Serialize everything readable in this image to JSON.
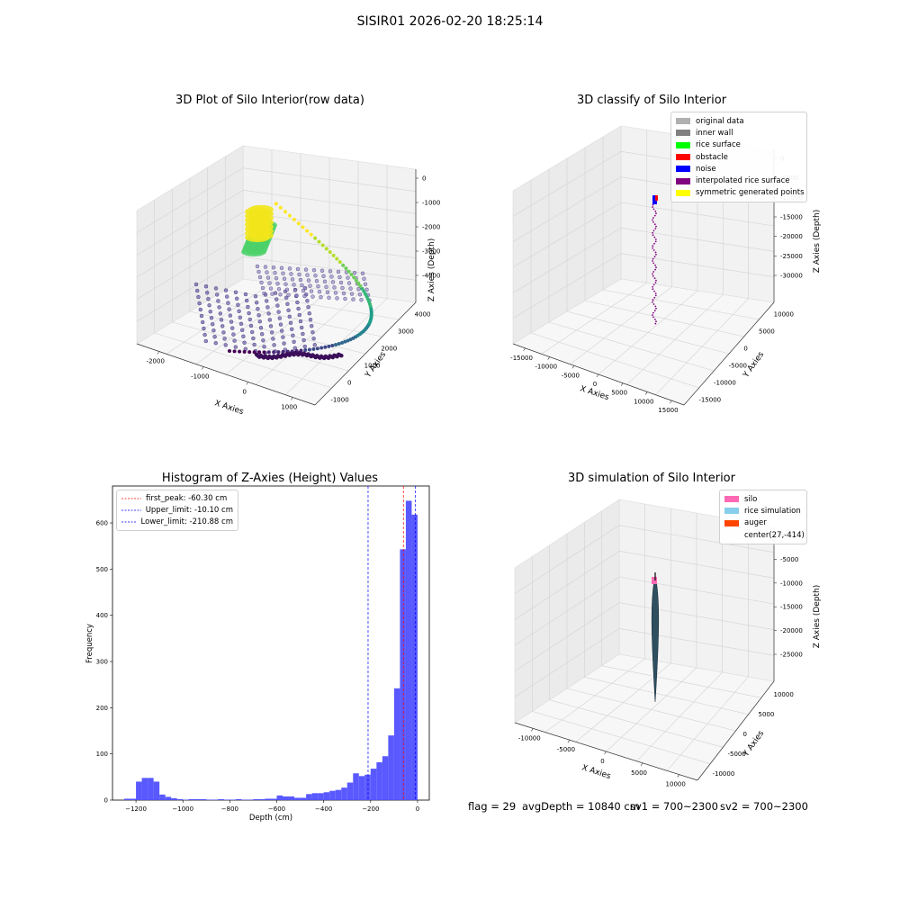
{
  "figure": {
    "title": "SISIR01 2026-02-20 18:25:14"
  },
  "chart_data": [
    {
      "type": "scatter",
      "dimensions": 3,
      "title": "3D Plot of Silo Interior(row data)",
      "xlabel": "X Axies",
      "ylabel": "Y Axies",
      "zlabel": "Z Axies (Depth)",
      "xticks": [
        "-2000",
        "-1000",
        "0",
        "1000"
      ],
      "yticks": [
        "-1000",
        "0",
        "1000",
        "2000",
        "3000",
        "4000"
      ],
      "zticks": [
        "0",
        "-1000",
        "-2000",
        "-3000",
        "-4000"
      ],
      "colormap": "viridis",
      "grid": true
    },
    {
      "type": "scatter",
      "dimensions": 3,
      "title": "3D classify of Silo Interior",
      "xlabel": "X Axies",
      "ylabel": "Y Axies",
      "zlabel": "Z Axies (Depth)",
      "xticks": [
        "-15000",
        "-10000",
        "-5000",
        "0",
        "5000",
        "10000",
        "15000"
      ],
      "yticks": [
        "-15000",
        "-10000",
        "-5000",
        "0",
        "5000",
        "10000"
      ],
      "zticks": [
        "0",
        "-5000",
        "-10000",
        "-15000",
        "-20000",
        "-25000",
        "-30000"
      ],
      "legend_position": "top-right",
      "legend": [
        {
          "label": "original data",
          "color": "#b0b0b0"
        },
        {
          "label": "inner wall",
          "color": "#808080"
        },
        {
          "label": "rice surface",
          "color": "#00ff00"
        },
        {
          "label": "obstacle",
          "color": "#ff0000"
        },
        {
          "label": "noise",
          "color": "#0000ff"
        },
        {
          "label": "interpolated rice surface",
          "color": "#800080"
        },
        {
          "label": "symmetric generated points",
          "color": "#ffff00"
        }
      ],
      "grid": true
    },
    {
      "type": "bar",
      "title": "Histogram of Z-Axies (Height) Values",
      "xlabel": "Depth (cm)",
      "ylabel": "Frequency",
      "xlim": [
        -1300,
        50
      ],
      "ylim": [
        0,
        680
      ],
      "xticks": [
        -1200,
        -1000,
        -800,
        -600,
        -400,
        -200,
        0
      ],
      "yticks": [
        0,
        100,
        200,
        300,
        400,
        500,
        600
      ],
      "bar_color": "#5050ff",
      "bins": [
        {
          "x0": -1250,
          "x1": -1225,
          "count": 3
        },
        {
          "x0": -1225,
          "x1": -1200,
          "count": 3
        },
        {
          "x0": -1200,
          "x1": -1175,
          "count": 40
        },
        {
          "x0": -1175,
          "x1": -1150,
          "count": 48
        },
        {
          "x0": -1150,
          "x1": -1125,
          "count": 48
        },
        {
          "x0": -1125,
          "x1": -1100,
          "count": 40
        },
        {
          "x0": -1100,
          "x1": -1075,
          "count": 12
        },
        {
          "x0": -1075,
          "x1": -1050,
          "count": 7
        },
        {
          "x0": -1050,
          "x1": -1025,
          "count": 4
        },
        {
          "x0": -1025,
          "x1": -1000,
          "count": 2
        },
        {
          "x0": -1000,
          "x1": -975,
          "count": 1
        },
        {
          "x0": -975,
          "x1": -950,
          "count": 2
        },
        {
          "x0": -950,
          "x1": -925,
          "count": 2
        },
        {
          "x0": -925,
          "x1": -900,
          "count": 2
        },
        {
          "x0": -900,
          "x1": -875,
          "count": 1
        },
        {
          "x0": -875,
          "x1": -850,
          "count": 1
        },
        {
          "x0": -850,
          "x1": -825,
          "count": 2
        },
        {
          "x0": -825,
          "x1": -800,
          "count": 1
        },
        {
          "x0": -800,
          "x1": -775,
          "count": 1
        },
        {
          "x0": -775,
          "x1": -750,
          "count": 2
        },
        {
          "x0": -750,
          "x1": -725,
          "count": 1
        },
        {
          "x0": -725,
          "x1": -700,
          "count": 1
        },
        {
          "x0": -700,
          "x1": -675,
          "count": 2
        },
        {
          "x0": -675,
          "x1": -650,
          "count": 2
        },
        {
          "x0": -650,
          "x1": -625,
          "count": 3
        },
        {
          "x0": -625,
          "x1": -600,
          "count": 3
        },
        {
          "x0": -600,
          "x1": -575,
          "count": 10
        },
        {
          "x0": -575,
          "x1": -550,
          "count": 8
        },
        {
          "x0": -550,
          "x1": -525,
          "count": 8
        },
        {
          "x0": -525,
          "x1": -500,
          "count": 5
        },
        {
          "x0": -500,
          "x1": -475,
          "count": 5
        },
        {
          "x0": -475,
          "x1": -450,
          "count": 13
        },
        {
          "x0": -450,
          "x1": -425,
          "count": 15
        },
        {
          "x0": -425,
          "x1": -400,
          "count": 15
        },
        {
          "x0": -400,
          "x1": -375,
          "count": 17
        },
        {
          "x0": -375,
          "x1": -350,
          "count": 20
        },
        {
          "x0": -350,
          "x1": -325,
          "count": 22
        },
        {
          "x0": -325,
          "x1": -300,
          "count": 27
        },
        {
          "x0": -300,
          "x1": -275,
          "count": 38
        },
        {
          "x0": -275,
          "x1": -250,
          "count": 58
        },
        {
          "x0": -250,
          "x1": -225,
          "count": 52
        },
        {
          "x0": -225,
          "x1": -200,
          "count": 55
        },
        {
          "x0": -200,
          "x1": -175,
          "count": 68
        },
        {
          "x0": -175,
          "x1": -150,
          "count": 82
        },
        {
          "x0": -150,
          "x1": -125,
          "count": 95
        },
        {
          "x0": -125,
          "x1": -100,
          "count": 140
        },
        {
          "x0": -100,
          "x1": -75,
          "count": 242
        },
        {
          "x0": -75,
          "x1": -50,
          "count": 543
        },
        {
          "x0": -50,
          "x1": -25,
          "count": 648
        },
        {
          "x0": -25,
          "x1": 0,
          "count": 618
        }
      ],
      "lines": [
        {
          "label": "first_peak: -60.30 cm",
          "x": -60.3,
          "color": "#ff0000"
        },
        {
          "label": "Upper_limit: -10.10 cm",
          "x": -10.1,
          "color": "#0000ff"
        },
        {
          "label": "Lower_limit: -210.88 cm",
          "x": -210.88,
          "color": "#0000ff"
        }
      ],
      "legend_position": "top-left"
    },
    {
      "type": "scatter",
      "dimensions": 3,
      "title": "3D simulation of Silo Interior",
      "xlabel": "X Axies",
      "ylabel": "Y Axies",
      "zlabel": "Z Axies (Depth)",
      "xticks": [
        "-10000",
        "-5000",
        "0",
        "5000",
        "10000"
      ],
      "yticks": [
        "-10000",
        "-5000",
        "0",
        "5000",
        "10000"
      ],
      "zticks": [
        "0",
        "-5000",
        "-10000",
        "-15000",
        "-20000",
        "-25000"
      ],
      "legend_position": "top-right",
      "legend": [
        {
          "label": "silo",
          "color": "#ff69b4"
        },
        {
          "label": "rice simulation",
          "color": "#87ceeb"
        },
        {
          "label": "auger",
          "color": "#ff4500"
        },
        {
          "label": "center(27,-414)",
          "color": ""
        }
      ],
      "grid": true
    }
  ],
  "footer": {
    "flag": "flag = 29",
    "avg_depth": "avgDepth = 10840 cm",
    "sv1": "sv1 = 700~2300",
    "sv2": "sv2 = 700~2300"
  }
}
